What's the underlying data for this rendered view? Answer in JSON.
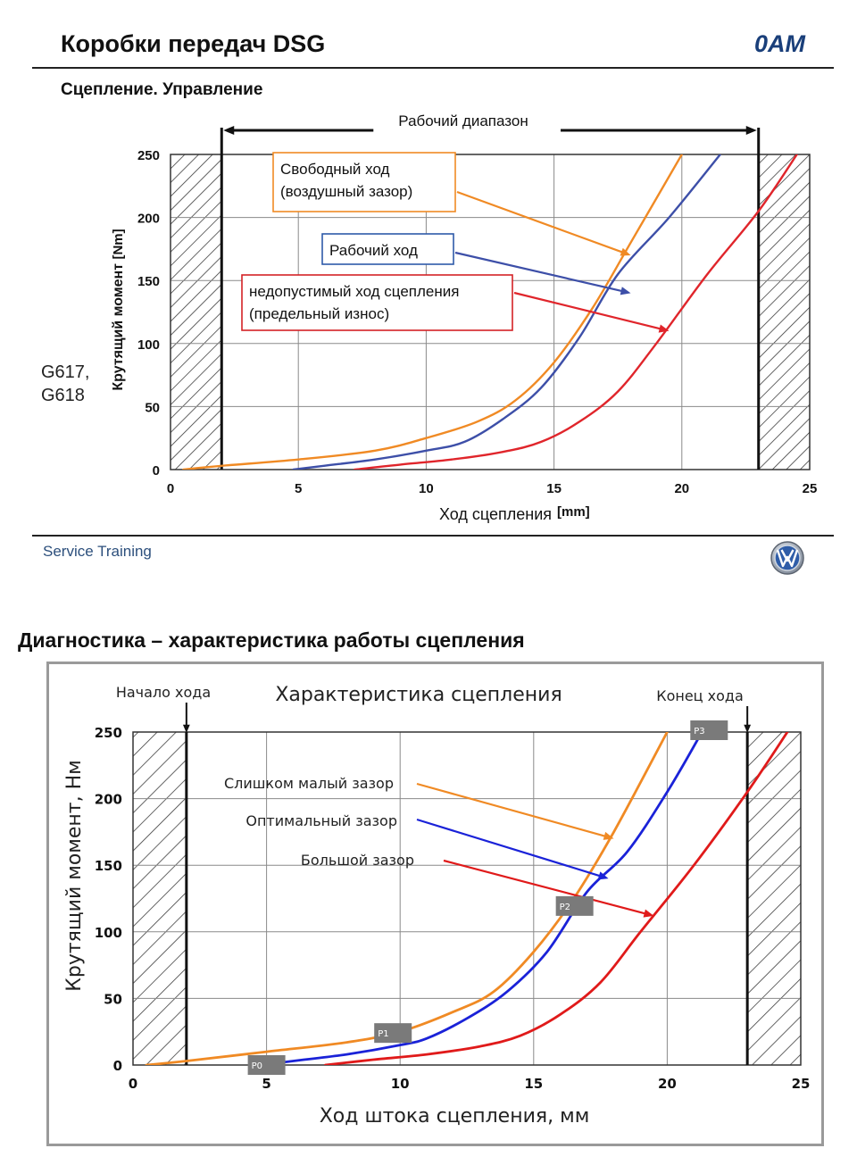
{
  "header": {
    "title": "Коробки передач DSG",
    "code": "0AM",
    "subtitle": "Сцепление. Управление"
  },
  "footer": {
    "text": "Service Training",
    "logo_icon": "vw-logo-icon"
  },
  "side_labels": [
    "G617,",
    "G618"
  ],
  "section2_title": "Диагностика – характеристика работы сцепления",
  "colors": {
    "orange": "#f08a24",
    "blue": "#3d4fa8",
    "red": "#e0252b",
    "blue2": "#1a22d8",
    "red2": "#e01a1a"
  },
  "chart_data": [
    {
      "type": "line",
      "title": "",
      "range_label": "Рабочий диапазон",
      "xlabel": "Ход сцепления",
      "xunit": "[mm]",
      "ylabel": "Крутящий момент",
      "yunit": "[Nm]",
      "xlim": [
        0,
        25
      ],
      "ylim": [
        0,
        250
      ],
      "xticks": [
        "0",
        "5",
        "10",
        "15",
        "20",
        "25"
      ],
      "yticks": [
        "0",
        "50",
        "100",
        "150",
        "200",
        "250"
      ],
      "grid": true,
      "range_limits": [
        2,
        23
      ],
      "series": [
        {
          "name": "Свободный ход (воздушный зазор)",
          "color": "orange",
          "x": [
            0.5,
            2,
            5,
            8,
            10,
            12,
            13.5,
            15,
            16.5,
            18,
            20
          ],
          "y": [
            0,
            3,
            8,
            15,
            25,
            38,
            55,
            85,
            128,
            180,
            250
          ]
        },
        {
          "name": "Рабочий ход",
          "color": "blue",
          "x": [
            4.8,
            6,
            8,
            10,
            11.5,
            13,
            14.5,
            16,
            17.5,
            19.5,
            21.5
          ],
          "y": [
            0,
            3,
            8,
            15,
            22,
            40,
            65,
            105,
            155,
            200,
            250
          ]
        },
        {
          "name": "недопустимый ход сцепления (предельный износ)",
          "color": "red",
          "x": [
            7.2,
            9,
            11,
            13,
            14.5,
            16,
            17.5,
            19,
            21,
            23,
            24.5
          ],
          "y": [
            0,
            4,
            8,
            14,
            22,
            38,
            62,
            100,
            155,
            205,
            250
          ]
        }
      ],
      "annotations": [
        {
          "lines": [
            "Свободный ход",
            "(воздушный зазор)"
          ],
          "target": [
            18,
            170
          ],
          "color": "orange"
        },
        {
          "lines": [
            "Рабочий ход"
          ],
          "target": [
            18,
            140
          ],
          "color": "blue"
        },
        {
          "lines": [
            "недопустимый ход сцепления",
            "(предельный износ)"
          ],
          "target": [
            19.5,
            110
          ],
          "color": "red"
        }
      ]
    },
    {
      "type": "line",
      "title": "Характеристика сцепления",
      "start_label": "Начало хода",
      "end_label": "Конец хода",
      "xlabel": "Ход штока сцепления, мм",
      "ylabel": "Крутящий момент, Нм",
      "xlim": [
        0,
        25
      ],
      "ylim": [
        0,
        250
      ],
      "xticks": [
        "0",
        "5",
        "10",
        "15",
        "20",
        "25"
      ],
      "yticks": [
        "0",
        "50",
        "100",
        "150",
        "200",
        "250"
      ],
      "grid": true,
      "range_limits": [
        2,
        23
      ],
      "series": [
        {
          "name": "Слишком малый зазор",
          "color": "orange",
          "x": [
            0.5,
            2,
            5,
            8,
            10,
            12,
            13.5,
            15,
            16.5,
            18,
            20
          ],
          "y": [
            0,
            3,
            10,
            17,
            25,
            40,
            55,
            85,
            125,
            175,
            250
          ]
        },
        {
          "name": "Оптимальный зазор",
          "color": "blue2",
          "x": [
            4.8,
            6,
            8,
            10,
            11,
            12.5,
            14,
            15.5,
            17,
            18.5,
            20,
            21.3
          ],
          "y": [
            0,
            3,
            8,
            15,
            20,
            35,
            55,
            85,
            130,
            160,
            205,
            250
          ]
        },
        {
          "name": "Большой зазор",
          "color": "red2",
          "x": [
            7.2,
            9,
            11,
            13,
            14.5,
            16,
            17.5,
            19,
            21,
            23,
            24.5
          ],
          "y": [
            0,
            4,
            8,
            14,
            22,
            38,
            62,
            100,
            150,
            205,
            250
          ]
        }
      ],
      "annotations": [
        {
          "lines": [
            "Слишком малый зазор"
          ],
          "target": [
            18,
            170
          ],
          "color": "orange"
        },
        {
          "lines": [
            "Оптимальный зазор"
          ],
          "target": [
            17.8,
            140
          ],
          "color": "blue2"
        },
        {
          "lines": [
            "Большой зазор"
          ],
          "target": [
            19.5,
            112
          ],
          "color": "red2"
        }
      ],
      "points": [
        {
          "label": "P0",
          "x": 5,
          "y": 0
        },
        {
          "label": "P1",
          "x": 10,
          "y": 20
        },
        {
          "label": "P2",
          "x": 16.8,
          "y": 110
        },
        {
          "label": "P3",
          "x": 21.3,
          "y": 250
        }
      ]
    }
  ]
}
